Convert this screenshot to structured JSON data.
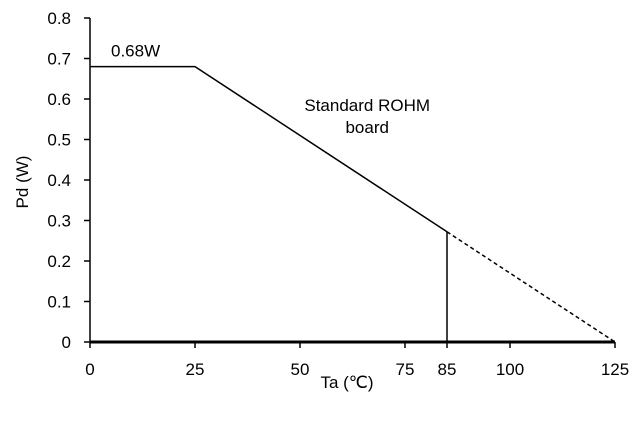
{
  "chart_data": {
    "type": "line",
    "title": "",
    "xlabel": "Ta (℃)",
    "ylabel": "Pd (W)",
    "xlim": [
      0,
      125
    ],
    "ylim": [
      0,
      0.8
    ],
    "x_ticks": [
      {
        "value": 0,
        "label": "0"
      },
      {
        "value": 25,
        "label": "25"
      },
      {
        "value": 50,
        "label": "50"
      },
      {
        "value": 75,
        "label": "75"
      },
      {
        "value": 85,
        "label": "85"
      },
      {
        "value": 100,
        "label": "100"
      },
      {
        "value": 125,
        "label": "125"
      }
    ],
    "y_ticks": [
      {
        "value": 0,
        "label": "0"
      },
      {
        "value": 0.1,
        "label": "0.1"
      },
      {
        "value": 0.2,
        "label": "0.2"
      },
      {
        "value": 0.3,
        "label": "0.3"
      },
      {
        "value": 0.4,
        "label": "0.4"
      },
      {
        "value": 0.5,
        "label": "0.5"
      },
      {
        "value": 0.6,
        "label": "0.6"
      },
      {
        "value": 0.7,
        "label": "0.7"
      },
      {
        "value": 0.8,
        "label": "0.8"
      }
    ],
    "grid": false,
    "legend": "none",
    "series": [
      {
        "style": "solid",
        "x": [
          0,
          25,
          85
        ],
        "y": [
          0.68,
          0.68,
          0.272
        ]
      },
      {
        "style": "dashed",
        "x": [
          85,
          125
        ],
        "y": [
          0.272,
          0
        ]
      }
    ],
    "vertical_marker": {
      "x": 85,
      "y_top": 0.272
    },
    "annotations": [
      {
        "text": "0.68W",
        "x": 5,
        "y": 0.705
      },
      {
        "text_lines": [
          "Standard ROHM",
          "board"
        ],
        "x": 66,
        "y": 0.57
      }
    ],
    "line_color": "#000000"
  }
}
